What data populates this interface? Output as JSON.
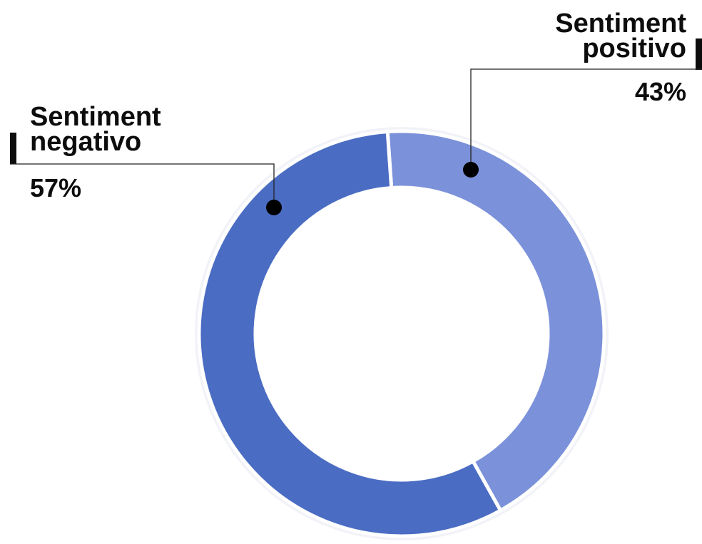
{
  "chart_data": {
    "type": "pie",
    "variant": "donut",
    "title": "",
    "categories": [
      "Sentiment negativo",
      "Sentiment positivo"
    ],
    "values": [
      57,
      43
    ],
    "unit": "%",
    "colors": [
      "#4a6cc3",
      "#7b91da"
    ],
    "legend": "none",
    "labels": [
      {
        "line1": "Sentiment",
        "line2": "negativo",
        "value_text": "57%"
      },
      {
        "line1": "Sentiment",
        "line2": "positivo",
        "value_text": "43%"
      }
    ]
  }
}
